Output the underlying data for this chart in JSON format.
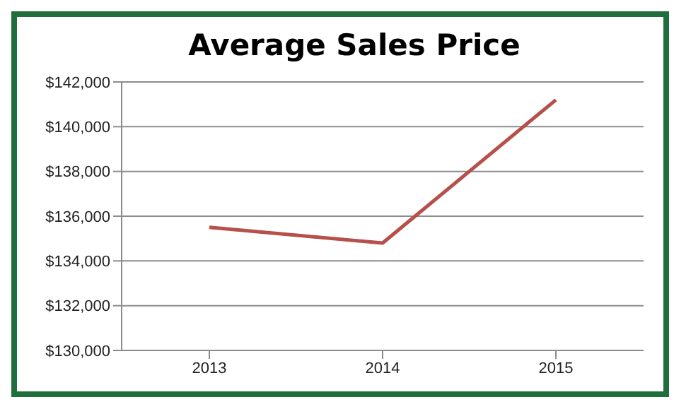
{
  "chart_data": {
    "type": "line",
    "title": "Average Sales Price",
    "categories": [
      "2013",
      "2014",
      "2015"
    ],
    "series": [
      {
        "color": "#b5504a",
        "values": [
          135500,
          134800,
          141200
        ]
      }
    ],
    "ylim": [
      130000,
      142000
    ],
    "yticks": [
      {
        "value": 130000,
        "label": "$130,000"
      },
      {
        "value": 132000,
        "label": "$132,000"
      },
      {
        "value": 134000,
        "label": "$134,000"
      },
      {
        "value": 136000,
        "label": "$136,000"
      },
      {
        "value": 138000,
        "label": "$138,000"
      },
      {
        "value": 140000,
        "label": "$140,000"
      },
      {
        "value": 142000,
        "label": "$142,000"
      }
    ],
    "grid": "y",
    "marker": "none",
    "line_style": "solid"
  }
}
